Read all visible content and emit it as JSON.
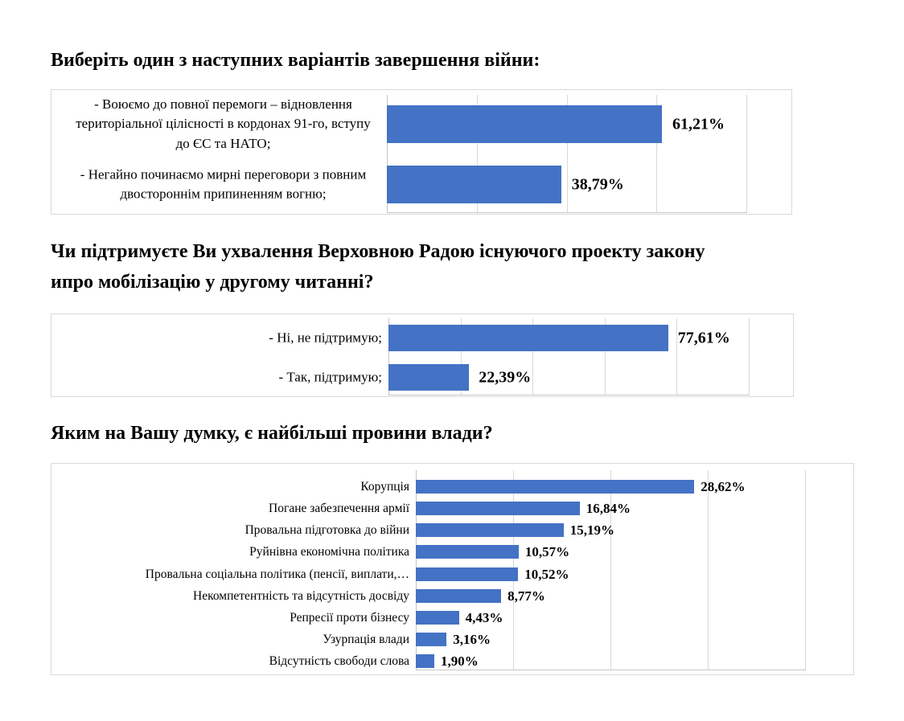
{
  "page": {
    "background": "#ffffff",
    "description": "Survey results with three horizontal bar charts"
  },
  "colors": {
    "bar": "#4472C4",
    "gridline": "#d9d9d9",
    "chart_border": "#d9d9d9",
    "axis_line": "#c6c6c6",
    "text": "#000000"
  },
  "chart_data": [
    {
      "type": "bar",
      "orientation": "horizontal",
      "title": "Виберіть один з наступних варіантів завершення війни:",
      "categories": [
        "- Воюємо до повної перемоги – відновлення територіальної цілісності в кордонах 91-го, вступу до ЄС та НАТО;",
        "- Негайно починаємо мирні переговори з повним двостороннім припиненням вогню;"
      ],
      "values": [
        61.21,
        38.79
      ],
      "value_labels": [
        "61,21%",
        "38,79%"
      ],
      "xlim": [
        0,
        80
      ],
      "grid_step": 20,
      "grid": true,
      "legend": false,
      "bar_color": "#4472C4"
    },
    {
      "type": "bar",
      "orientation": "horizontal",
      "title": "Чи підтримуєте Ви ухвалення Верховною Радою існуючого проекту закону\nипро мобілізацію у другому читанні?",
      "categories": [
        "- Ні, не підтримую;",
        "- Так, підтримую;"
      ],
      "values": [
        77.61,
        22.39
      ],
      "value_labels": [
        "77,61%",
        "22,39%"
      ],
      "xlim": [
        0,
        100
      ],
      "grid_step": 20,
      "grid": true,
      "legend": false,
      "bar_color": "#4472C4"
    },
    {
      "type": "bar",
      "orientation": "horizontal",
      "title": "Яким на Вашу думку, є найбільші провини влади?",
      "categories": [
        "Корупція",
        "Погане забезпечення армії",
        "Провальна підготовка до війни",
        "Руйнівна економічна політика",
        "Провальна соціальна політика (пенсії, виплати,…",
        "Некомпетентність та відсутність досвіду",
        "Репресії проти бізнесу",
        "Узурпація влади",
        "Відсутність свободи слова"
      ],
      "values": [
        28.62,
        16.84,
        15.19,
        10.57,
        10.52,
        8.77,
        4.43,
        3.16,
        1.9
      ],
      "value_labels": [
        "28,62%",
        "16,84%",
        "15,19%",
        "10,57%",
        "10,52%",
        "8,77%",
        "4,43%",
        "3,16%",
        "1,90%"
      ],
      "xlim": [
        0,
        40
      ],
      "grid_step": 10,
      "grid": true,
      "legend": false,
      "bar_color": "#4472C4"
    }
  ]
}
